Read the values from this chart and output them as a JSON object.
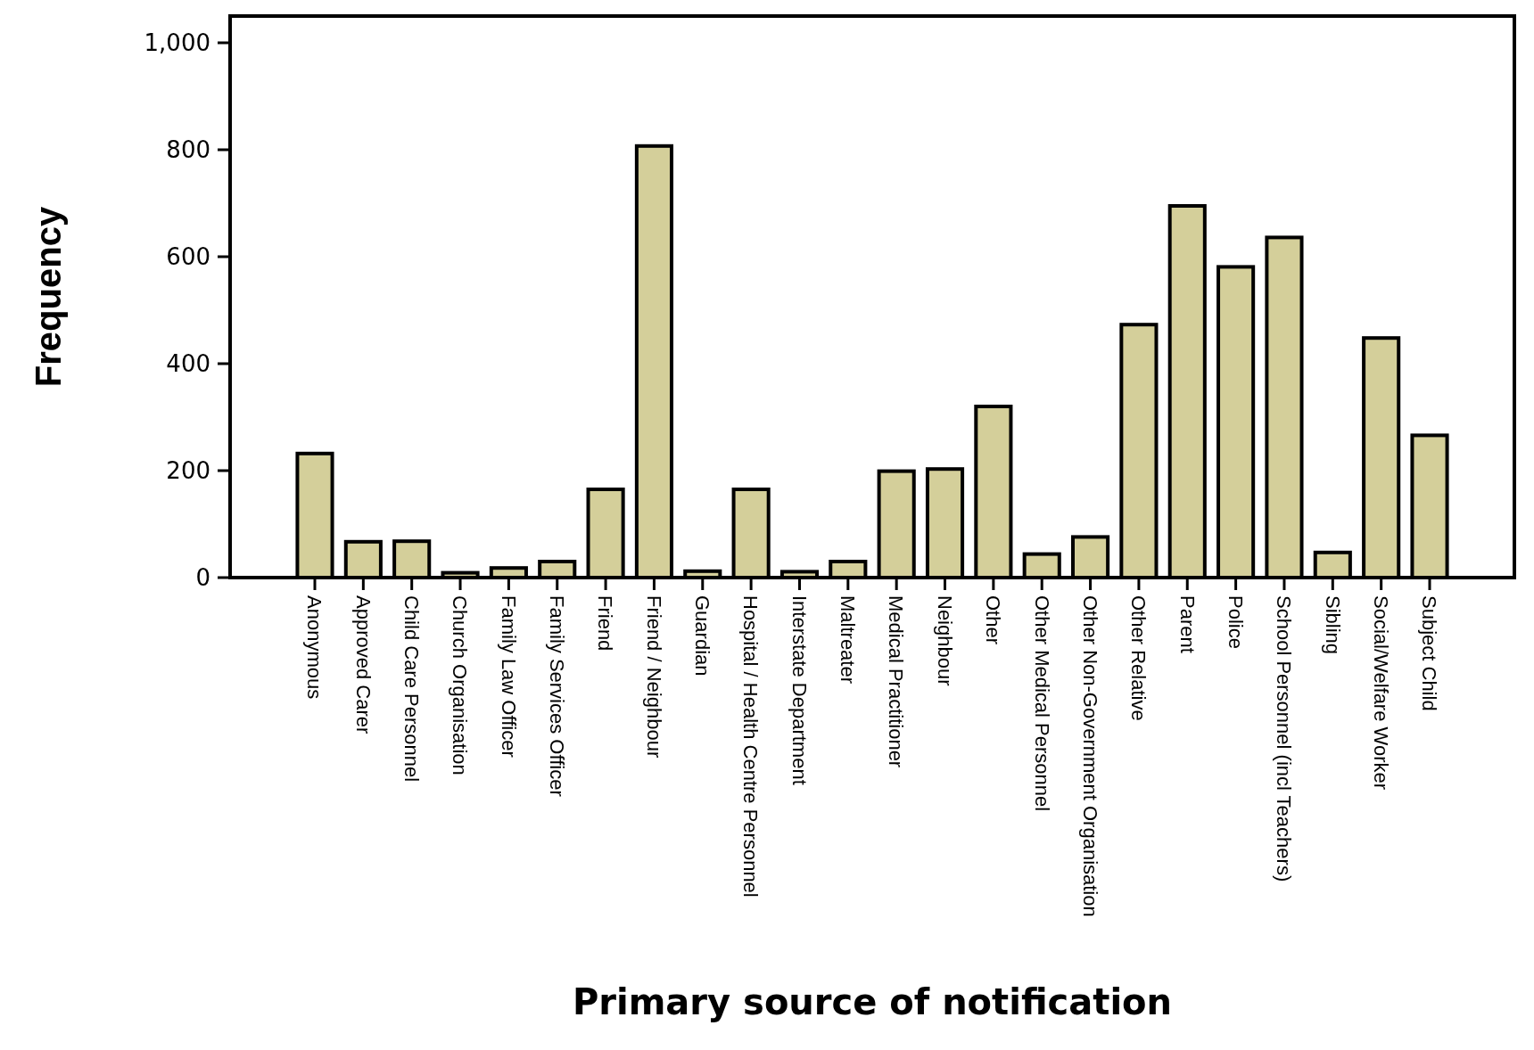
{
  "chart_data": {
    "type": "bar",
    "xlabel": "Primary source of notification",
    "ylabel": "Frequency",
    "categories": [
      "Anonymous",
      "Approved Carer",
      "Child Care Personnel",
      "Church Organisation",
      "Family Law Officer",
      "Family Services Officer",
      "Friend",
      "Friend / Neighbour",
      "Guardian",
      "Hospital / Health Centre Personnel",
      "Interstate Department",
      "Maltreater",
      "Medical Practitioner",
      "Neighbour",
      "Other",
      "Other Medical Personnel",
      "Other Non-Government Organisation",
      "Other Relative",
      "Parent",
      "Police",
      "School Personnel (incl Teachers)",
      "Sibling",
      "Social/Welfare Worker",
      "Subject Child"
    ],
    "values": [
      232,
      67,
      68,
      9,
      18,
      30,
      165,
      807,
      12,
      165,
      11,
      30,
      199,
      203,
      320,
      44,
      76,
      473,
      695,
      581,
      636,
      47,
      448,
      266
    ],
    "color": "#d4cf9a",
    "ylim": [
      0,
      1050
    ],
    "yticks": [
      0,
      200,
      400,
      600,
      800,
      {
        "value": 1000,
        "label": "1,000"
      }
    ],
    "grid": false
  }
}
